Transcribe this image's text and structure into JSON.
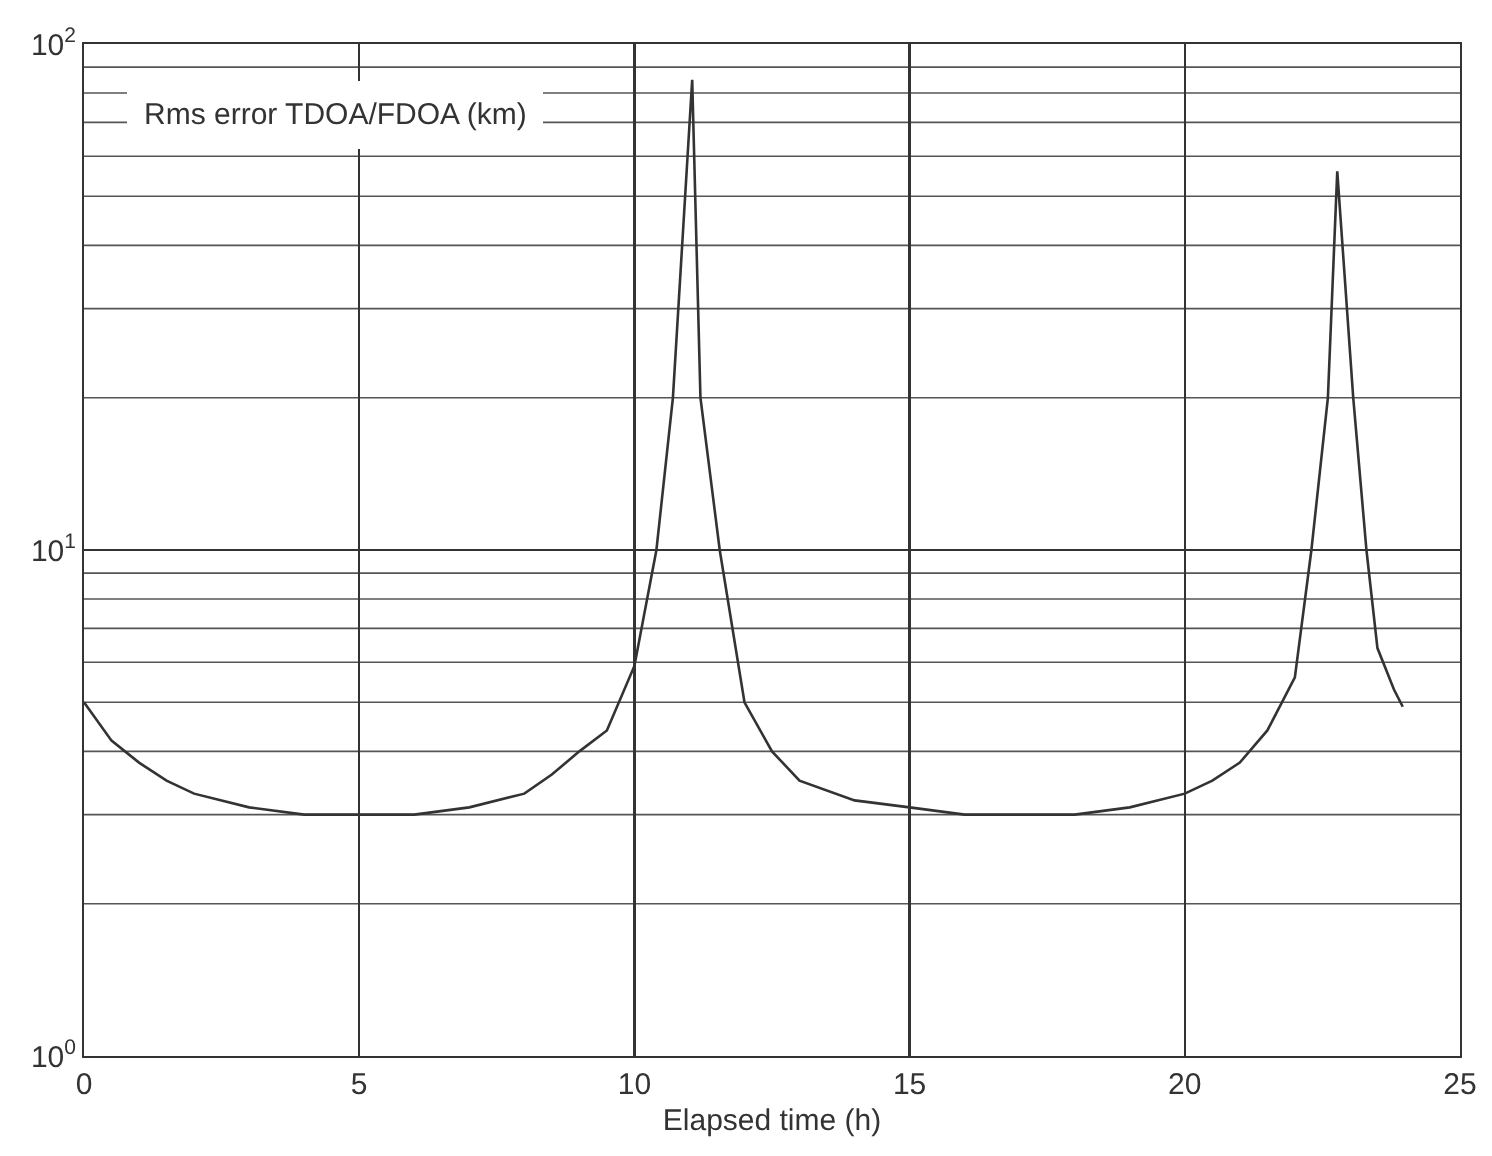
{
  "chart_data": {
    "type": "line",
    "ylabel": "Rms error TDOA/FDOA (km)",
    "xlabel": "Elapsed time (h)",
    "log": "y",
    "grid": true,
    "xlim": [
      0,
      25
    ],
    "xticks": [
      0,
      5,
      10,
      15,
      20,
      25
    ],
    "ylim": [
      1,
      100
    ],
    "yticks": [
      {
        "value": 1,
        "label": "10$^{0}$"
      },
      {
        "value": 10,
        "label": "10$^{1}$"
      },
      {
        "value": 100,
        "label": "10$^{2}$"
      }
    ],
    "series": [
      {
        "color": "#333333",
        "x": [
          0,
          0.5,
          1,
          1.5,
          2,
          3,
          4,
          5,
          6,
          7,
          8,
          8.5,
          9,
          9.5,
          10,
          10.4,
          10.7,
          11.05,
          11.2,
          11.55,
          12,
          12.5,
          13,
          14,
          15,
          16,
          17,
          18,
          19,
          20,
          20.5,
          21,
          21.5,
          22,
          22.3,
          22.6,
          22.77,
          23.06,
          23.3,
          23.5,
          23.8,
          23.96
        ],
        "values": [
          5,
          4.2,
          3.8,
          3.5,
          3.3,
          3.1,
          3.0,
          3.0,
          3.0,
          3.1,
          3.3,
          3.6,
          4.0,
          4.4,
          5.9,
          10,
          20,
          85,
          20,
          10,
          5,
          4.0,
          3.5,
          3.2,
          3.1,
          3.0,
          3.0,
          3.0,
          3.1,
          3.3,
          3.5,
          3.8,
          4.4,
          5.6,
          10,
          20,
          56,
          20,
          10,
          6.4,
          5.3,
          4.9
        ]
      }
    ]
  }
}
